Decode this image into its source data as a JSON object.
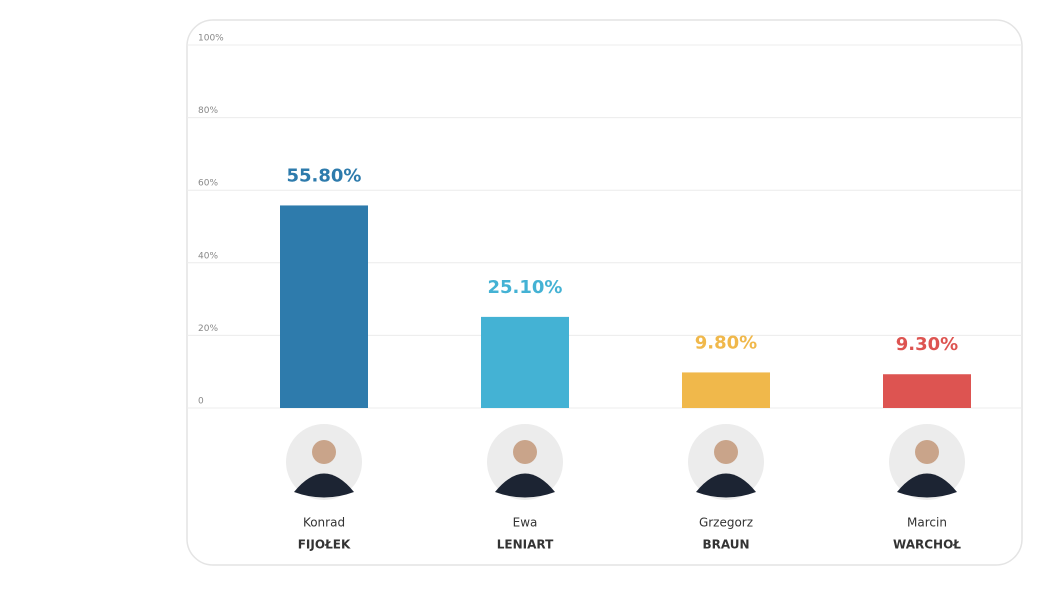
{
  "chart_data": {
    "type": "bar",
    "categories": [
      [
        "Konrad",
        "FIJOŁEK"
      ],
      [
        "Ewa",
        "LENIART"
      ],
      [
        "Grzegorz",
        "BRAUN"
      ],
      [
        "Marcin",
        "WARCHOŁ"
      ]
    ],
    "values": [
      55.8,
      25.1,
      9.8,
      9.3
    ],
    "value_labels": [
      "55.80%",
      "25.10%",
      "9.80%",
      "9.30%"
    ],
    "colors": [
      "#2e7bac",
      "#44b2d4",
      "#f0b84b",
      "#dd5451"
    ],
    "ylim": [
      0,
      100
    ],
    "yticks": [
      0,
      {
        "value": 20,
        "label": "20%"
      },
      {
        "value": 40,
        "label": "40%"
      },
      {
        "value": 60,
        "label": "60%"
      },
      {
        "value": 80,
        "label": "80%"
      },
      {
        "value": 100,
        "label": "100%"
      }
    ],
    "grid": true
  }
}
